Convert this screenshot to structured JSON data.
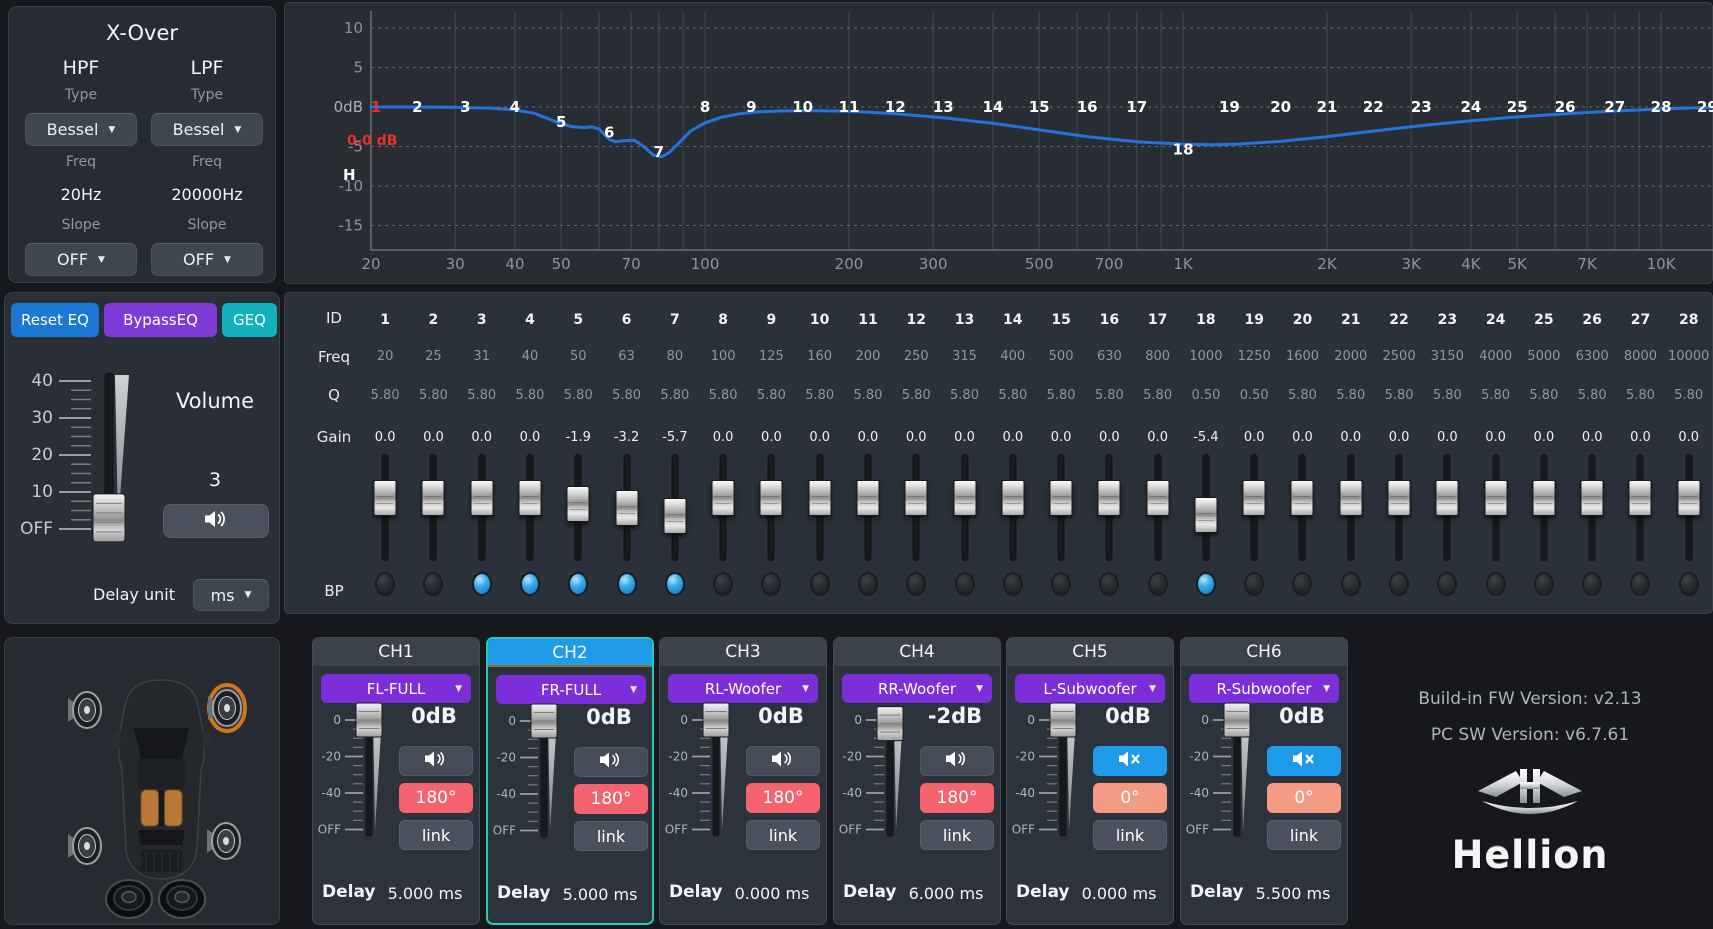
{
  "xover": {
    "title": "X-Over",
    "hpf": {
      "label": "HPF",
      "type_label": "Type",
      "type_value": "Bessel",
      "freq_label": "Freq",
      "freq_value": "20Hz",
      "slope_label": "Slope",
      "slope_value": "OFF"
    },
    "lpf": {
      "label": "LPF",
      "type_label": "Type",
      "type_value": "Bessel",
      "freq_label": "Freq",
      "freq_value": "20000Hz",
      "slope_label": "Slope",
      "slope_value": "OFF"
    }
  },
  "graph": {
    "selected_gain_readout": "0.0 dB",
    "hpf_marker": "H",
    "accent_curve_color": "#2273dd",
    "selected_label_color": "#e8312a"
  },
  "chart_data": {
    "type": "line",
    "title": "EQ frequency response (dB vs Hz)",
    "x_axis": {
      "scale": "log",
      "min": 20,
      "max": 27000,
      "tick_labels": [
        "20",
        "30",
        "40",
        "50",
        "70",
        "100",
        "200",
        "300",
        "500",
        "700",
        "1K",
        "2K",
        "3K",
        "4K",
        "5K",
        "7K",
        "10K"
      ],
      "tick_freqs": [
        20,
        30,
        40,
        50,
        70,
        100,
        200,
        300,
        500,
        700,
        1000,
        2000,
        3000,
        4000,
        5000,
        7000,
        10000
      ]
    },
    "y_axis": {
      "tick_labels": [
        "10",
        "5",
        "0dB",
        "-5",
        "-10",
        "-15"
      ],
      "tick_values": [
        10,
        5,
        0,
        -5,
        -10,
        -15
      ]
    },
    "grid_freqs": [
      20,
      30,
      40,
      50,
      60,
      70,
      80,
      90,
      100,
      200,
      300,
      400,
      500,
      600,
      700,
      800,
      900,
      1000,
      2000,
      3000,
      4000,
      5000,
      6000,
      7000,
      8000,
      9000,
      10000,
      20000
    ],
    "series": [
      {
        "name": "EQ response",
        "color": "#2273dd",
        "points": [
          [
            20,
            0
          ],
          [
            25,
            0
          ],
          [
            31,
            -0.05
          ],
          [
            36,
            -0.15
          ],
          [
            40,
            -0.35
          ],
          [
            44,
            -0.8
          ],
          [
            47,
            -1.5
          ],
          [
            50,
            -2.15
          ],
          [
            53,
            -2.5
          ],
          [
            56,
            -2.6
          ],
          [
            58,
            -2.5
          ],
          [
            60,
            -2.8
          ],
          [
            63,
            -4.1
          ],
          [
            65,
            -4.4
          ],
          [
            68,
            -4.25
          ],
          [
            71,
            -4.2
          ],
          [
            74,
            -4.9
          ],
          [
            78,
            -6.1
          ],
          [
            81,
            -6.3
          ],
          [
            84,
            -5.8
          ],
          [
            88,
            -4.6
          ],
          [
            93,
            -3.1
          ],
          [
            100,
            -2.0
          ],
          [
            108,
            -1.3
          ],
          [
            118,
            -0.85
          ],
          [
            130,
            -0.6
          ],
          [
            145,
            -0.5
          ],
          [
            165,
            -0.45
          ],
          [
            200,
            -0.55
          ],
          [
            250,
            -0.85
          ],
          [
            315,
            -1.35
          ],
          [
            400,
            -2.05
          ],
          [
            500,
            -2.9
          ],
          [
            630,
            -3.75
          ],
          [
            800,
            -4.4
          ],
          [
            1000,
            -4.7
          ],
          [
            1150,
            -4.8
          ],
          [
            1300,
            -4.7
          ],
          [
            1600,
            -4.35
          ],
          [
            2000,
            -3.75
          ],
          [
            2500,
            -3.05
          ],
          [
            3150,
            -2.35
          ],
          [
            4000,
            -1.75
          ],
          [
            5000,
            -1.25
          ],
          [
            6300,
            -0.85
          ],
          [
            8000,
            -0.5
          ],
          [
            10000,
            -0.25
          ],
          [
            12500,
            -0.05
          ],
          [
            16000,
            0.1
          ],
          [
            20000,
            0.2
          ],
          [
            27000,
            0.25
          ]
        ]
      }
    ],
    "point_labels": {
      "ids": [
        "1",
        "2",
        "3",
        "4",
        "5",
        "6",
        "7",
        "8",
        "9",
        "10",
        "11",
        "12",
        "13",
        "14",
        "15",
        "16",
        "17",
        "18",
        "19",
        "20",
        "21",
        "22",
        "23",
        "24",
        "25",
        "26",
        "27",
        "28",
        "29"
      ],
      "freqs": [
        20,
        25,
        31.5,
        40,
        50,
        63,
        80,
        100,
        125,
        160,
        200,
        250,
        315,
        400,
        500,
        630,
        800,
        1000,
        1250,
        1600,
        2000,
        2500,
        3150,
        4000,
        5000,
        6300,
        8000,
        10000,
        12500
      ],
      "gains": [
        0,
        0,
        0,
        0,
        -1.9,
        -3.2,
        -5.7,
        0,
        0,
        0,
        0,
        0,
        0,
        0,
        0,
        0,
        0,
        -5.4,
        0,
        0,
        0,
        0,
        0,
        0,
        0,
        0,
        0,
        0,
        0
      ],
      "selected_index": 0
    }
  },
  "eq": {
    "buttons": {
      "reset": "Reset EQ",
      "bypass": "BypassEQ",
      "geq": "GEQ"
    },
    "row_labels": {
      "id": "ID",
      "freq": "Freq",
      "q": "Q",
      "gain": "Gain",
      "bp": "BP"
    },
    "bands": {
      "ids": [
        "1",
        "2",
        "3",
        "4",
        "5",
        "6",
        "7",
        "8",
        "9",
        "10",
        "11",
        "12",
        "13",
        "14",
        "15",
        "16",
        "17",
        "18",
        "19",
        "20",
        "21",
        "22",
        "23",
        "24",
        "25",
        "26",
        "27",
        "28"
      ],
      "freqs": [
        "20",
        "25",
        "31",
        "40",
        "50",
        "63",
        "80",
        "100",
        "125",
        "160",
        "200",
        "250",
        "315",
        "400",
        "500",
        "630",
        "800",
        "1000",
        "1250",
        "1600",
        "2000",
        "2500",
        "3150",
        "4000",
        "5000",
        "6300",
        "8000",
        "10000"
      ],
      "qs": [
        "5.80",
        "5.80",
        "5.80",
        "5.80",
        "5.80",
        "5.80",
        "5.80",
        "5.80",
        "5.80",
        "5.80",
        "5.80",
        "5.80",
        "5.80",
        "5.80",
        "5.80",
        "5.80",
        "5.80",
        "0.50",
        "0.50",
        "5.80",
        "5.80",
        "5.80",
        "5.80",
        "5.80",
        "5.80",
        "5.80",
        "5.80",
        "5.80"
      ],
      "gains": [
        "0.0",
        "0.0",
        "0.0",
        "0.0",
        "-1.9",
        "-3.2",
        "-5.7",
        "0.0",
        "0.0",
        "0.0",
        "0.0",
        "0.0",
        "0.0",
        "0.0",
        "0.0",
        "0.0",
        "0.0",
        "-5.4",
        "0.0",
        "0.0",
        "0.0",
        "0.0",
        "0.0",
        "0.0",
        "0.0",
        "0.0",
        "0.0",
        "0.0"
      ],
      "bp_on": [
        3,
        4,
        5,
        6,
        7,
        18
      ]
    }
  },
  "volume": {
    "label": "Volume",
    "value": "3",
    "scale": [
      "40",
      "30",
      "20",
      "10",
      "OFF"
    ],
    "delay_unit_label": "Delay unit",
    "delay_unit_value": "ms"
  },
  "channels": [
    {
      "id": "CH1",
      "name": "FL-FULL",
      "gain": "0dB",
      "muted": false,
      "phase": "180°",
      "phase_tone": "red",
      "link": "link",
      "delay_label": "Delay",
      "delay": "5.000 ms",
      "selected": false,
      "slider_db": 0
    },
    {
      "id": "CH2",
      "name": "FR-FULL",
      "gain": "0dB",
      "muted": false,
      "phase": "180°",
      "phase_tone": "red",
      "link": "link",
      "delay_label": "Delay",
      "delay": "5.000 ms",
      "selected": true,
      "slider_db": 0
    },
    {
      "id": "CH3",
      "name": "RL-Woofer",
      "gain": "0dB",
      "muted": false,
      "phase": "180°",
      "phase_tone": "red",
      "link": "link",
      "delay_label": "Delay",
      "delay": "0.000 ms",
      "selected": false,
      "slider_db": 0
    },
    {
      "id": "CH4",
      "name": "RR-Woofer",
      "gain": "-2dB",
      "muted": false,
      "phase": "180°",
      "phase_tone": "red",
      "link": "link",
      "delay_label": "Delay",
      "delay": "6.000 ms",
      "selected": false,
      "slider_db": -2
    },
    {
      "id": "CH5",
      "name": "L-Subwoofer",
      "gain": "0dB",
      "muted": true,
      "phase": "0°",
      "phase_tone": "salmon",
      "link": "link",
      "delay_label": "Delay",
      "delay": "0.000 ms",
      "selected": false,
      "slider_db": 0
    },
    {
      "id": "CH6",
      "name": "R-Subwoofer",
      "gain": "0dB",
      "muted": true,
      "phase": "0°",
      "phase_tone": "salmon",
      "link": "link",
      "delay_label": "Delay",
      "delay": "5.500 ms",
      "selected": false,
      "slider_db": 0
    }
  ],
  "channel_slider_scale": [
    "0",
    "-20",
    "-40",
    "OFF"
  ],
  "car": {
    "highlighted_speaker": "front-right"
  },
  "brand": {
    "fw_version": "Build-in FW Version: v2.13",
    "sw_version": "PC SW Version: v6.7.61",
    "logo_text": "Hellion"
  }
}
